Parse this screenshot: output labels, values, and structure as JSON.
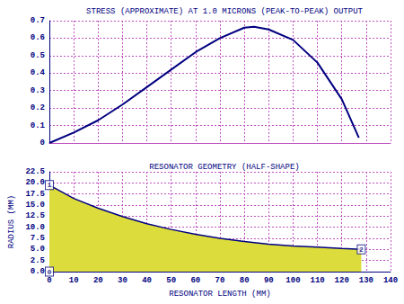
{
  "chart_data": [
    {
      "type": "line",
      "title": "STRESS (APPROXIMATE) AT 1.0 MICRONS (PEAK-TO-PEAK) OUTPUT",
      "x": [
        0,
        10,
        20,
        30,
        40,
        50,
        60,
        70,
        80,
        84,
        90,
        100,
        110,
        120,
        127
      ],
      "values": [
        0,
        0.06,
        0.13,
        0.22,
        0.32,
        0.42,
        0.52,
        0.6,
        0.66,
        0.665,
        0.65,
        0.59,
        0.46,
        0.25,
        0.03
      ],
      "color": "#000080",
      "xlim": [
        0,
        140
      ],
      "xticks": [
        0,
        10,
        20,
        30,
        40,
        50,
        60,
        70,
        80,
        90,
        100,
        110,
        120,
        130,
        140
      ],
      "ylim": [
        0,
        0.7
      ],
      "yticks": [
        0,
        0.1,
        0.2,
        0.3,
        0.4,
        0.5,
        0.6,
        0.7
      ],
      "grid": true,
      "tick_labels": "y"
    },
    {
      "type": "area",
      "title": "RESONATOR GEOMETRY (HALF-SHAPE)",
      "x_label": "RESONATOR LENGTH (MM)",
      "y_label": "RADIUS (MM)",
      "x": [
        0,
        10,
        20,
        30,
        40,
        50,
        60,
        70,
        80,
        90,
        100,
        110,
        120,
        128
      ],
      "values": [
        19.5,
        16.5,
        14.3,
        12.4,
        10.8,
        9.5,
        8.4,
        7.5,
        6.8,
        6.2,
        5.8,
        5.5,
        5.2,
        5.0
      ],
      "color": "#000080",
      "xlim": [
        0,
        140
      ],
      "xticks": [
        0,
        10,
        20,
        30,
        40,
        50,
        60,
        70,
        80,
        90,
        100,
        110,
        120,
        130,
        140
      ],
      "ylim": [
        0,
        22.5
      ],
      "yticks": [
        {
          "value": 0,
          "label": "0.0"
        },
        2.5,
        {
          "value": 5,
          "label": "5.0"
        },
        7.5,
        {
          "value": 10,
          "label": "10.0"
        },
        12.5,
        {
          "value": 15,
          "label": "15.0"
        },
        17.5,
        {
          "value": 20,
          "label": "20.0"
        },
        22.5
      ],
      "grid": true,
      "annotations": [
        {
          "text": "0",
          "x": 0,
          "y": 0
        },
        {
          "text": "1",
          "x": 0,
          "y": 19.5
        },
        {
          "text": "2",
          "x": 128,
          "y": 5.0
        }
      ]
    }
  ]
}
